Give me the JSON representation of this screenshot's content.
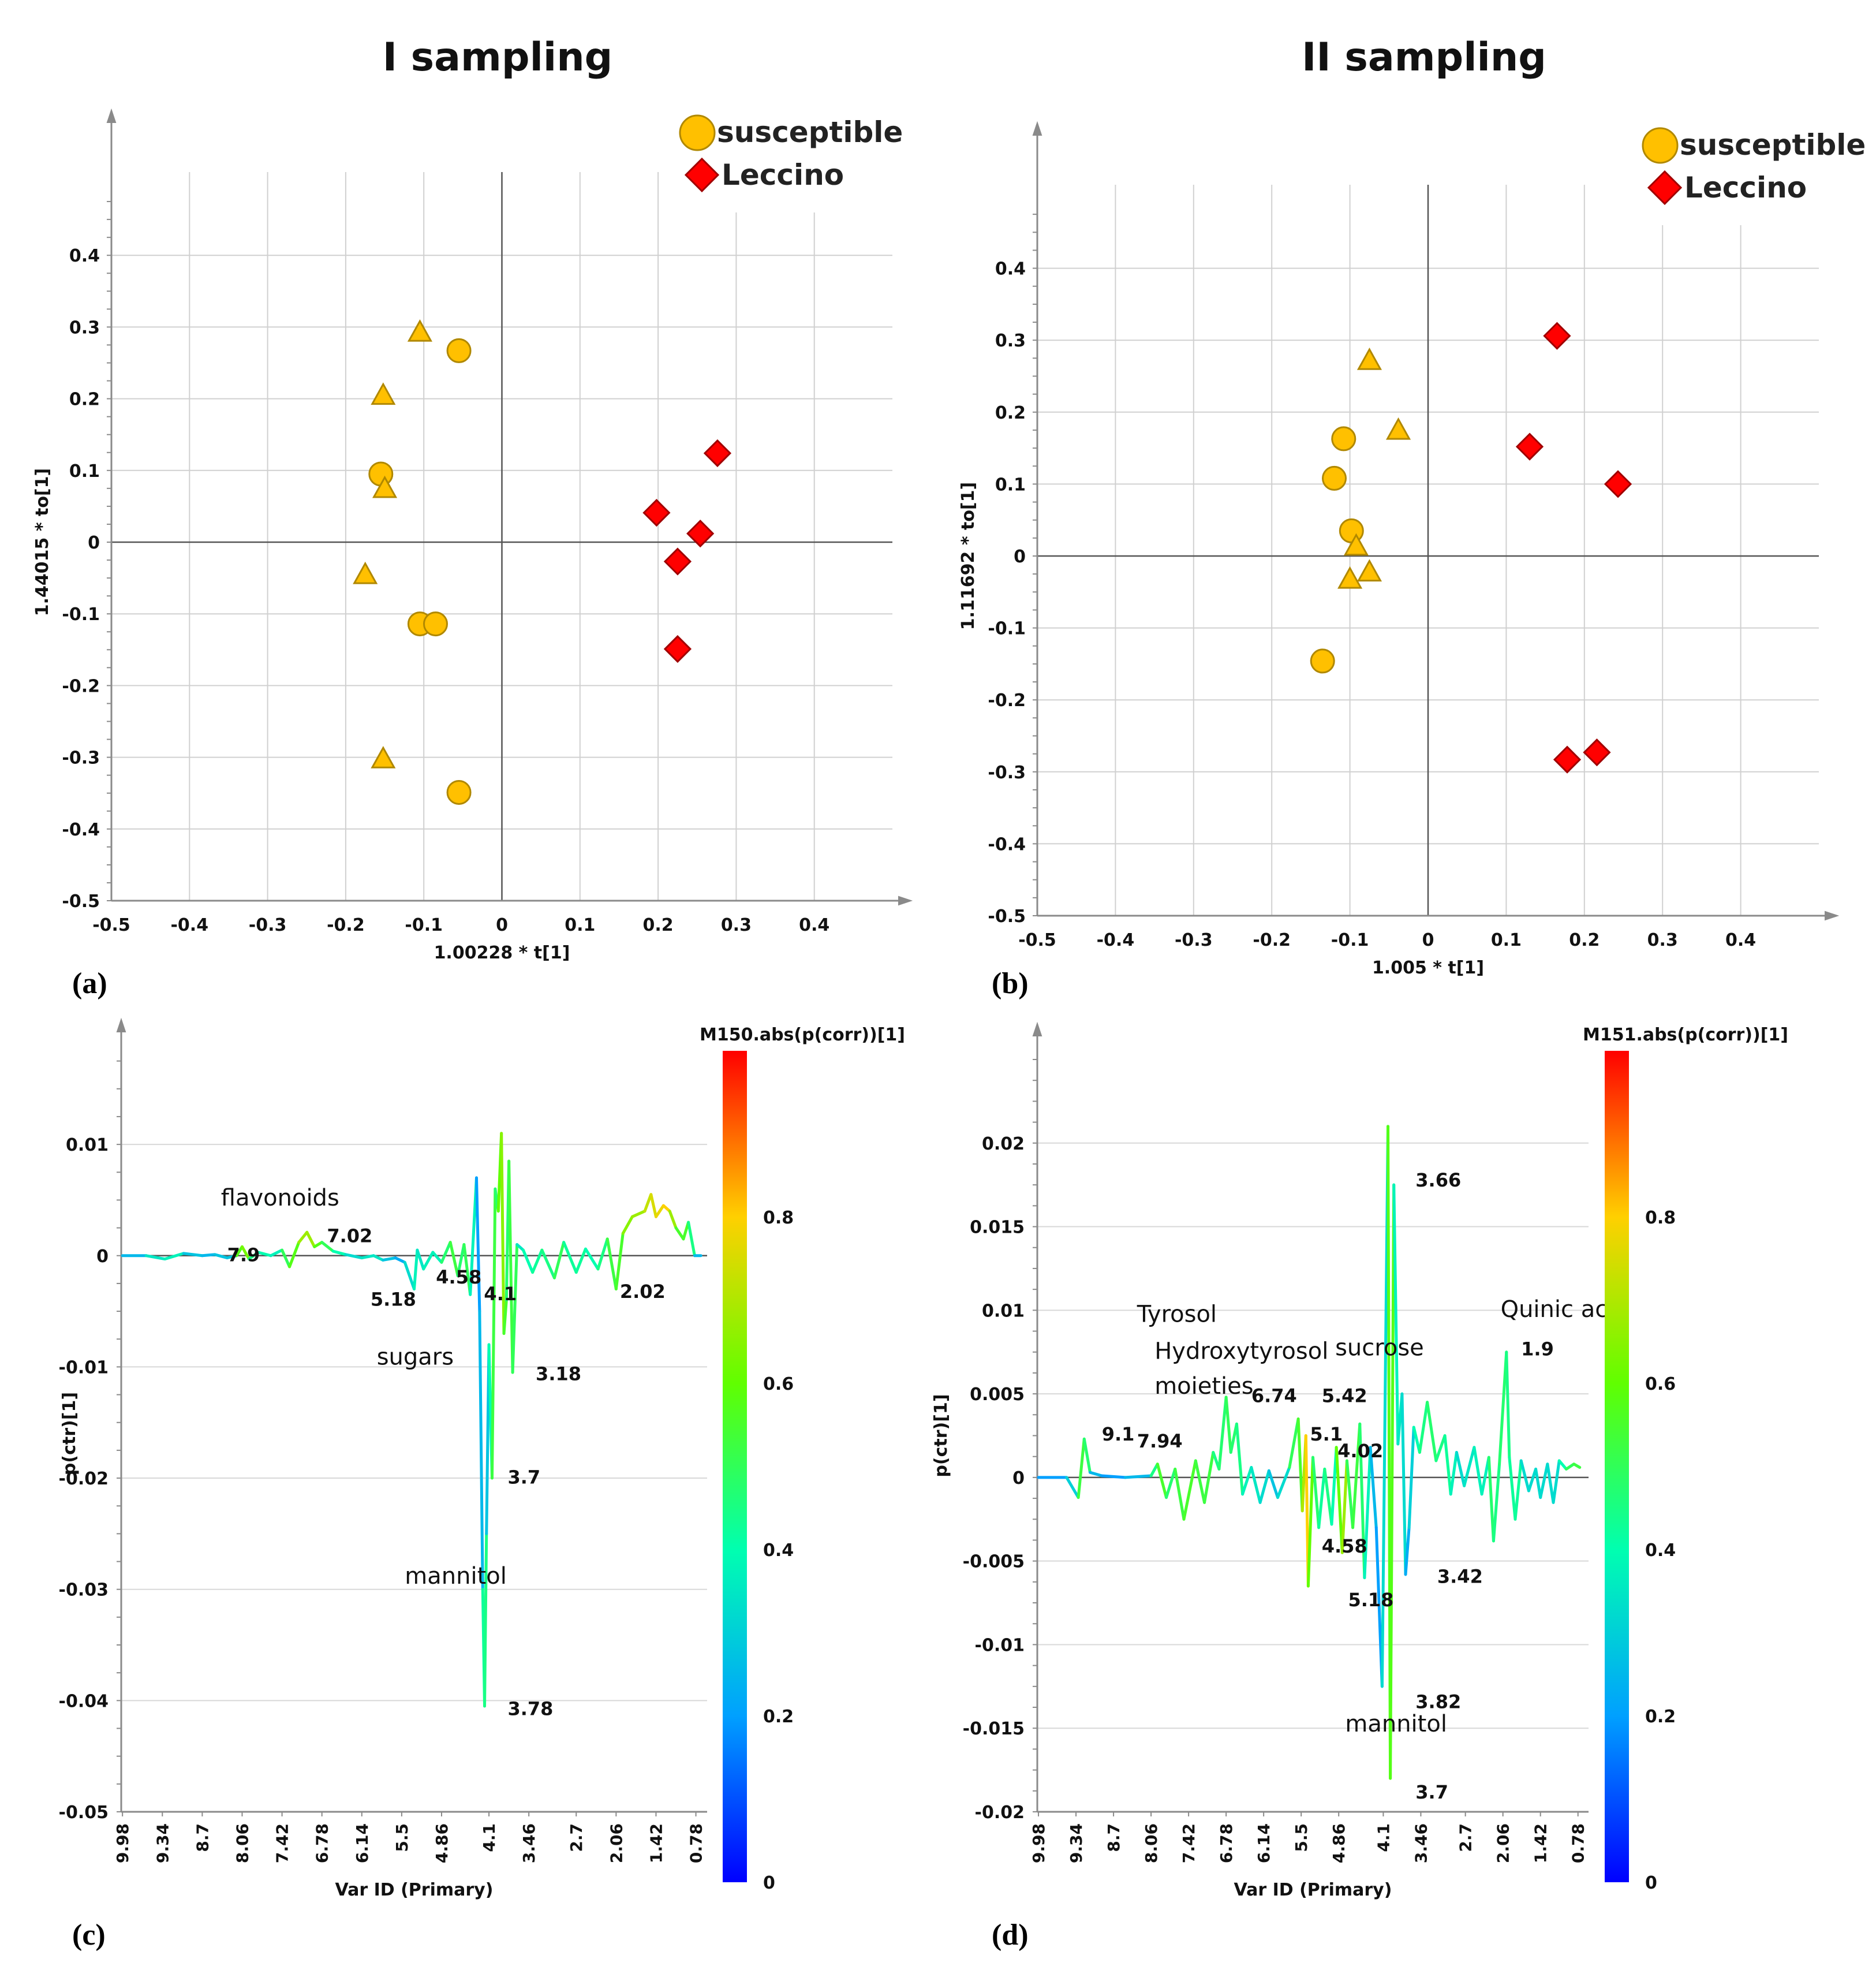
{
  "titles": {
    "left": "I sampling",
    "right": "II sampling"
  },
  "legend": {
    "susceptible": "susceptible",
    "leccino": "Leccino"
  },
  "colors": {
    "susceptible": "#FFC000",
    "susceptible_stroke": "#B08800",
    "leccino": "#FF0000",
    "leccino_stroke": "#A00000",
    "grid": "#D0D0D0",
    "axis": "#606060"
  },
  "chart_data": [
    {
      "panel": "(a)",
      "type": "scatter",
      "title": "I sampling",
      "xlabel": "1.00228 * t[1]",
      "ylabel": "1.44015 * to[1]",
      "xlim": [
        -0.5,
        0.5
      ],
      "ylim": [
        -0.5,
        0.5
      ],
      "xticks": [
        -0.5,
        -0.4,
        -0.3,
        -0.2,
        -0.1,
        0,
        0.1,
        0.2,
        0.3,
        0.4
      ],
      "yticks": [
        0.4,
        0.3,
        0.2,
        0.1,
        0,
        -0.1,
        -0.2,
        -0.3,
        -0.4,
        -0.5
      ],
      "series": [
        {
          "name": "susceptible",
          "marker": "circle",
          "points": [
            [
              -0.055,
              0.267
            ],
            [
              -0.155,
              0.095
            ],
            [
              -0.105,
              -0.114
            ],
            [
              -0.085,
              -0.114
            ],
            [
              -0.055,
              -0.349
            ]
          ]
        },
        {
          "name": "susceptible (triangles)",
          "marker": "triangle",
          "points": [
            [
              -0.105,
              0.293
            ],
            [
              -0.152,
              0.205
            ],
            [
              -0.15,
              0.075
            ],
            [
              -0.175,
              -0.045
            ],
            [
              -0.152,
              -0.302
            ]
          ]
        },
        {
          "name": "Leccino",
          "marker": "diamond",
          "points": [
            [
              0.276,
              0.124
            ],
            [
              0.198,
              0.041
            ],
            [
              0.254,
              0.012
            ],
            [
              0.225,
              -0.027
            ],
            [
              0.225,
              -0.149
            ]
          ]
        }
      ]
    },
    {
      "panel": "(b)",
      "type": "scatter",
      "title": "II sampling",
      "xlabel": "1.005 * t[1]",
      "ylabel": "1.11692 * to[1]",
      "xlim": [
        -0.5,
        0.5
      ],
      "ylim": [
        -0.5,
        0.5
      ],
      "xticks": [
        -0.5,
        -0.4,
        -0.3,
        -0.2,
        -0.1,
        0,
        0.1,
        0.2,
        0.3,
        0.4
      ],
      "yticks": [
        0.4,
        0.3,
        0.2,
        0.1,
        0,
        -0.1,
        -0.2,
        -0.3,
        -0.4,
        -0.5
      ],
      "series": [
        {
          "name": "susceptible",
          "marker": "circle",
          "points": [
            [
              -0.108,
              0.163
            ],
            [
              -0.12,
              0.108
            ],
            [
              -0.098,
              0.035
            ],
            [
              -0.135,
              -0.146
            ]
          ]
        },
        {
          "name": "susceptible (triangles)",
          "marker": "triangle",
          "points": [
            [
              -0.075,
              0.272
            ],
            [
              -0.038,
              0.175
            ],
            [
              -0.092,
              0.014
            ],
            [
              -0.1,
              -0.032
            ],
            [
              -0.075,
              -0.022
            ]
          ]
        },
        {
          "name": "Leccino",
          "marker": "diamond",
          "points": [
            [
              0.165,
              0.306
            ],
            [
              0.13,
              0.152
            ],
            [
              0.243,
              0.1
            ],
            [
              0.178,
              -0.283
            ],
            [
              0.216,
              -0.273
            ]
          ]
        }
      ]
    },
    {
      "panel": "(c)",
      "type": "line",
      "xlabel": "Var ID (Primary)",
      "ylabel": "p(ctr)[1]",
      "colorbar_title": "M150.abs(p(corr))[1]",
      "colorbar_ticks": [
        "0.8",
        "0.6",
        "0.4",
        "0.2",
        "0"
      ],
      "xlim": [
        10.0,
        0.6
      ],
      "ylim": [
        -0.05,
        0.018
      ],
      "xticks": [
        "9.98",
        "9.34",
        "8.7",
        "8.06",
        "7.42",
        "6.78",
        "6.14",
        "5.5",
        "4.86",
        "4.1",
        "3.46",
        "2.7",
        "2.06",
        "1.42",
        "0.78"
      ],
      "yticks": [
        "0.01",
        "0",
        "-0.01",
        "-0.02",
        "-0.03",
        "-0.04",
        "-0.05"
      ],
      "points": [
        [
          9.98,
          0,
          0.2
        ],
        [
          9.6,
          0,
          0.3
        ],
        [
          9.3,
          -0.0003,
          0.4
        ],
        [
          9.0,
          0.0002,
          0.35
        ],
        [
          8.7,
          0,
          0.2
        ],
        [
          8.5,
          0.0001,
          0.3
        ],
        [
          8.3,
          -0.0002,
          0.25
        ],
        [
          8.15,
          0,
          0.3
        ],
        [
          8.06,
          0.0008,
          0.85
        ],
        [
          7.95,
          -0.0003,
          0.4
        ],
        [
          7.8,
          0.0003,
          0.5
        ],
        [
          7.6,
          0,
          0.3
        ],
        [
          7.42,
          0.0005,
          0.45
        ],
        [
          7.3,
          -0.001,
          0.55
        ],
        [
          7.15,
          0.0012,
          0.6
        ],
        [
          7.02,
          0.0021,
          0.75
        ],
        [
          6.9,
          0.0008,
          0.6
        ],
        [
          6.78,
          0.0012,
          0.55
        ],
        [
          6.6,
          0.0004,
          0.45
        ],
        [
          6.4,
          0.0001,
          0.35
        ],
        [
          6.14,
          -0.0002,
          0.3
        ],
        [
          5.95,
          0,
          0.4
        ],
        [
          5.8,
          -0.0004,
          0.3
        ],
        [
          5.6,
          -0.0002,
          0.25
        ],
        [
          5.45,
          -0.0006,
          0.2
        ],
        [
          5.3,
          -0.003,
          0.45
        ],
        [
          5.25,
          0.0005,
          0.3
        ],
        [
          5.15,
          -0.0012,
          0.4
        ],
        [
          5.0,
          0.0003,
          0.35
        ],
        [
          4.86,
          -0.0006,
          0.4
        ],
        [
          4.72,
          0.0012,
          0.55
        ],
        [
          4.6,
          -0.0018,
          0.5
        ],
        [
          4.5,
          0.001,
          0.45
        ],
        [
          4.4,
          -0.0035,
          0.55
        ],
        [
          4.3,
          0.007,
          0.2
        ],
        [
          4.25,
          -0.005,
          0.2
        ],
        [
          4.2,
          -0.03,
          0.3
        ],
        [
          4.17,
          -0.0405,
          0.55
        ],
        [
          4.14,
          -0.025,
          0.35
        ],
        [
          4.1,
          -0.008,
          0.2
        ],
        [
          4.05,
          -0.02,
          0.6
        ],
        [
          4.0,
          0.006,
          0.45
        ],
        [
          3.95,
          0.004,
          0.5
        ],
        [
          3.9,
          0.011,
          0.7
        ],
        [
          3.86,
          -0.007,
          0.6
        ],
        [
          3.82,
          -0.004,
          0.5
        ],
        [
          3.78,
          0.0085,
          0.45
        ],
        [
          3.72,
          -0.0105,
          0.6
        ],
        [
          3.65,
          0.001,
          0.4
        ],
        [
          3.55,
          0.0005,
          0.3
        ],
        [
          3.4,
          -0.0015,
          0.5
        ],
        [
          3.25,
          0.0005,
          0.35
        ],
        [
          3.05,
          -0.002,
          0.55
        ],
        [
          2.9,
          0.0012,
          0.45
        ],
        [
          2.7,
          -0.0015,
          0.4
        ],
        [
          2.55,
          0.0006,
          0.45
        ],
        [
          2.35,
          -0.0012,
          0.35
        ],
        [
          2.2,
          0.0015,
          0.55
        ],
        [
          2.06,
          -0.003,
          0.5
        ],
        [
          1.95,
          0.002,
          0.6
        ],
        [
          1.8,
          0.0035,
          0.7
        ],
        [
          1.6,
          0.004,
          0.65
        ],
        [
          1.5,
          0.0055,
          0.8
        ],
        [
          1.42,
          0.0035,
          0.7
        ],
        [
          1.3,
          0.0045,
          0.85
        ],
        [
          1.2,
          0.004,
          0.75
        ],
        [
          1.1,
          0.0025,
          0.6
        ],
        [
          0.98,
          0.0015,
          0.5
        ],
        [
          0.9,
          0.003,
          0.6
        ],
        [
          0.8,
          0,
          0.3
        ],
        [
          0.7,
          0,
          0.2
        ]
      ],
      "annotations": [
        {
          "text": "flavonoids",
          "x": 8.4,
          "y": 0.0045,
          "bold": false
        },
        {
          "text": "7.9",
          "x": 8.3,
          "y": -0.0005,
          "bold": true
        },
        {
          "text": "7.02",
          "x": 6.7,
          "y": 0.0012,
          "bold": true
        },
        {
          "text": "5.18",
          "x": 6.0,
          "y": -0.0045,
          "bold": true
        },
        {
          "text": "4.58",
          "x": 4.95,
          "y": -0.0025,
          "bold": true
        },
        {
          "text": "4.1",
          "x": 4.18,
          "y": -0.004,
          "bold": true
        },
        {
          "text": "2.02",
          "x": 2.0,
          "y": -0.0038,
          "bold": true
        },
        {
          "text": "sugars",
          "x": 5.9,
          "y": -0.0098,
          "bold": false
        },
        {
          "text": "3.18",
          "x": 3.35,
          "y": -0.0112,
          "bold": true
        },
        {
          "text": "3.7",
          "x": 3.8,
          "y": -0.0205,
          "bold": true
        },
        {
          "text": "mannitol",
          "x": 5.45,
          "y": -0.0295,
          "bold": false
        },
        {
          "text": "3.78",
          "x": 3.8,
          "y": -0.0413,
          "bold": true
        }
      ]
    },
    {
      "panel": "(d)",
      "type": "line",
      "xlabel": "Var ID (Primary)",
      "ylabel": "p(ctr)[1]",
      "colorbar_title": "M151.abs(p(corr))[1]",
      "colorbar_ticks": [
        "0.8",
        "0.6",
        "0.4",
        "0.2",
        "0"
      ],
      "xlim": [
        10.0,
        0.6
      ],
      "ylim": [
        -0.02,
        0.025
      ],
      "xticks": [
        "9.98",
        "9.34",
        "8.7",
        "8.06",
        "7.42",
        "6.78",
        "6.14",
        "5.5",
        "4.86",
        "4.1",
        "3.46",
        "2.7",
        "2.06",
        "1.42",
        "0.78"
      ],
      "yticks": [
        "0.02",
        "0.015",
        "0.01",
        "0.005",
        "0",
        "-0.005",
        "-0.01",
        "-0.015",
        "-0.02"
      ],
      "points": [
        [
          9.98,
          0,
          0.2
        ],
        [
          9.5,
          0,
          0.2
        ],
        [
          9.3,
          -0.0012,
          0.4
        ],
        [
          9.2,
          0.0023,
          0.65
        ],
        [
          9.1,
          0.0003,
          0.3
        ],
        [
          8.9,
          0.0001,
          0.2
        ],
        [
          8.5,
          0,
          0.2
        ],
        [
          8.06,
          0.0001,
          0.3
        ],
        [
          7.95,
          0.0008,
          0.6
        ],
        [
          7.8,
          -0.0012,
          0.5
        ],
        [
          7.65,
          0.0005,
          0.45
        ],
        [
          7.5,
          -0.0025,
          0.6
        ],
        [
          7.3,
          0.001,
          0.5
        ],
        [
          7.15,
          -0.0015,
          0.55
        ],
        [
          7.0,
          0.0015,
          0.5
        ],
        [
          6.9,
          0.0005,
          0.4
        ],
        [
          6.78,
          0.0048,
          0.55
        ],
        [
          6.7,
          0.0015,
          0.45
        ],
        [
          6.6,
          0.0032,
          0.5
        ],
        [
          6.5,
          -0.001,
          0.4
        ],
        [
          6.35,
          0.0006,
          0.35
        ],
        [
          6.2,
          -0.0015,
          0.35
        ],
        [
          6.05,
          0.0004,
          0.3
        ],
        [
          5.9,
          -0.0012,
          0.25
        ],
        [
          5.7,
          0.0006,
          0.4
        ],
        [
          5.55,
          0.0035,
          0.6
        ],
        [
          5.48,
          -0.002,
          0.5
        ],
        [
          5.42,
          0.0025,
          0.9
        ],
        [
          5.38,
          -0.0065,
          0.7
        ],
        [
          5.3,
          0.0012,
          0.5
        ],
        [
          5.2,
          -0.003,
          0.45
        ],
        [
          5.1,
          0.0005,
          0.4
        ],
        [
          4.98,
          -0.0028,
          0.5
        ],
        [
          4.9,
          0.0018,
          0.3
        ],
        [
          4.8,
          -0.0045,
          0.9
        ],
        [
          4.72,
          0.001,
          0.45
        ],
        [
          4.62,
          -0.003,
          0.55
        ],
        [
          4.5,
          0.0032,
          0.5
        ],
        [
          4.42,
          -0.006,
          0.45
        ],
        [
          4.32,
          0.0018,
          0.3
        ],
        [
          4.22,
          -0.003,
          0.2
        ],
        [
          4.12,
          -0.0125,
          0.2
        ],
        [
          4.02,
          0.021,
          0.45
        ],
        [
          3.98,
          -0.018,
          0.7
        ],
        [
          3.92,
          0.0175,
          0.45
        ],
        [
          3.85,
          0.002,
          0.3
        ],
        [
          3.78,
          0.005,
          0.4
        ],
        [
          3.72,
          -0.0058,
          0.25
        ],
        [
          3.66,
          -0.003,
          0.2
        ],
        [
          3.58,
          0.003,
          0.4
        ],
        [
          3.48,
          0.0015,
          0.4
        ],
        [
          3.35,
          0.0045,
          0.5
        ],
        [
          3.2,
          0.001,
          0.45
        ],
        [
          3.05,
          0.0025,
          0.45
        ],
        [
          2.95,
          -0.001,
          0.4
        ],
        [
          2.85,
          0.0015,
          0.35
        ],
        [
          2.72,
          -0.0005,
          0.3
        ],
        [
          2.55,
          0.0018,
          0.4
        ],
        [
          2.42,
          -0.001,
          0.35
        ],
        [
          2.3,
          0.0012,
          0.4
        ],
        [
          2.22,
          -0.0038,
          0.55
        ],
        [
          2.12,
          0.0008,
          0.35
        ],
        [
          2.0,
          0.0075,
          0.6
        ],
        [
          1.95,
          0.0012,
          0.3
        ],
        [
          1.85,
          -0.0025,
          0.55
        ],
        [
          1.75,
          0.001,
          0.3
        ],
        [
          1.62,
          -0.0008,
          0.35
        ],
        [
          1.5,
          0.0005,
          0.3
        ],
        [
          1.42,
          -0.0012,
          0.35
        ],
        [
          1.3,
          0.0008,
          0.3
        ],
        [
          1.2,
          -0.0015,
          0.35
        ],
        [
          1.1,
          0.001,
          0.3
        ],
        [
          0.98,
          0.0005,
          0.5
        ],
        [
          0.85,
          0.0008,
          0.5
        ],
        [
          0.75,
          0.0006,
          0.55
        ]
      ],
      "annotations": [
        {
          "text": "Tyrosol",
          "x": 8.3,
          "y": 0.0093,
          "bold": false
        },
        {
          "text": "Hydroxytyrosol",
          "x": 8.0,
          "y": 0.0071,
          "bold": false
        },
        {
          "text": "moieties",
          "x": 8.0,
          "y": 0.005,
          "bold": false
        },
        {
          "text": "9.1",
          "x": 8.9,
          "y": 0.0022,
          "bold": true
        },
        {
          "text": "7.94",
          "x": 8.3,
          "y": 0.0018,
          "bold": true
        },
        {
          "text": "6.74",
          "x": 6.35,
          "y": 0.0045,
          "bold": true
        },
        {
          "text": "5.42",
          "x": 5.15,
          "y": 0.0045,
          "bold": true
        },
        {
          "text": "sucrose",
          "x": 4.92,
          "y": 0.0073,
          "bold": false
        },
        {
          "text": "5.1",
          "x": 5.35,
          "y": 0.0022,
          "bold": true
        },
        {
          "text": "4.02",
          "x": 4.88,
          "y": 0.0012,
          "bold": true
        },
        {
          "text": "4.58",
          "x": 5.15,
          "y": -0.0045,
          "bold": true
        },
        {
          "text": "5.18",
          "x": 4.7,
          "y": -0.0077,
          "bold": true
        },
        {
          "text": "3.66",
          "x": 3.55,
          "y": 0.0174,
          "bold": true
        },
        {
          "text": "Quinic acid",
          "x": 2.1,
          "y": 0.0096,
          "bold": false
        },
        {
          "text": "1.9",
          "x": 1.75,
          "y": 0.0073,
          "bold": true
        },
        {
          "text": "3.42",
          "x": 3.18,
          "y": -0.0063,
          "bold": true
        },
        {
          "text": "3.82",
          "x": 3.55,
          "y": -0.0138,
          "bold": true
        },
        {
          "text": "mannitol",
          "x": 4.75,
          "y": -0.0152,
          "bold": false
        },
        {
          "text": "3.7",
          "x": 3.55,
          "y": -0.0192,
          "bold": true
        }
      ]
    }
  ]
}
